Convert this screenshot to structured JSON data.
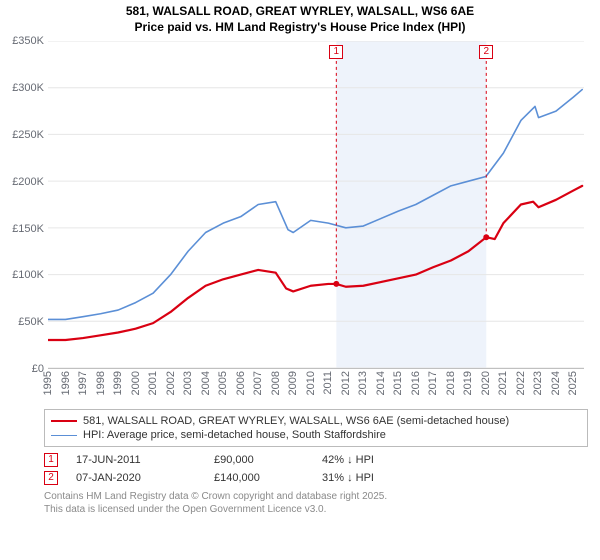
{
  "title": {
    "line1": "581, WALSALL ROAD, GREAT WYRLEY, WALSALL, WS6 6AE",
    "line2": "Price paid vs. HM Land Registry's House Price Index (HPI)",
    "fontsize": 12,
    "fontweight": "bold",
    "color": "#000000"
  },
  "chart": {
    "type": "line",
    "background_color": "#ffffff",
    "grid_color": "#e6e6e6",
    "shaded_band": {
      "x_from": 2011.46,
      "x_to": 2020.02,
      "fill": "#eef3fb"
    },
    "x": {
      "min": 1995,
      "max": 2025.6,
      "tick_step": 1,
      "labels": [
        "1995",
        "1996",
        "1997",
        "1998",
        "1999",
        "2000",
        "2001",
        "2002",
        "2003",
        "2004",
        "2005",
        "2006",
        "2007",
        "2008",
        "2009",
        "2010",
        "2011",
        "2012",
        "2013",
        "2014",
        "2015",
        "2016",
        "2017",
        "2018",
        "2019",
        "2020",
        "2021",
        "2022",
        "2023",
        "2024",
        "2025"
      ],
      "tick_rotation_deg": -90,
      "label_fontsize": 11,
      "label_color": "#666a73"
    },
    "y": {
      "min": 0,
      "max": 350000,
      "tick_step": 50000,
      "labels": [
        "£0",
        "£50K",
        "£100K",
        "£150K",
        "£200K",
        "£250K",
        "£300K",
        "£350K"
      ],
      "label_fontsize": 11,
      "label_color": "#666a73"
    },
    "series": [
      {
        "id": "property",
        "label": "581, WALSALL ROAD, GREAT WYRLEY, WALSALL, WS6 6AE (semi-detached house)",
        "color": "#d90012",
        "line_width": 2.2,
        "points": [
          [
            1995,
            30000
          ],
          [
            1996,
            30000
          ],
          [
            1997,
            32000
          ],
          [
            1998,
            35000
          ],
          [
            1999,
            38000
          ],
          [
            2000,
            42000
          ],
          [
            2001,
            48000
          ],
          [
            2002,
            60000
          ],
          [
            2003,
            75000
          ],
          [
            2004,
            88000
          ],
          [
            2005,
            95000
          ],
          [
            2006,
            100000
          ],
          [
            2007,
            105000
          ],
          [
            2008,
            102000
          ],
          [
            2008.6,
            85000
          ],
          [
            2009,
            82000
          ],
          [
            2010,
            88000
          ],
          [
            2011,
            90000
          ],
          [
            2011.46,
            90000
          ],
          [
            2012,
            87000
          ],
          [
            2013,
            88000
          ],
          [
            2014,
            92000
          ],
          [
            2015,
            96000
          ],
          [
            2016,
            100000
          ],
          [
            2017,
            108000
          ],
          [
            2018,
            115000
          ],
          [
            2019,
            125000
          ],
          [
            2020.02,
            140000
          ],
          [
            2020.5,
            138000
          ],
          [
            2021,
            155000
          ],
          [
            2022,
            175000
          ],
          [
            2022.7,
            178000
          ],
          [
            2023,
            172000
          ],
          [
            2024,
            180000
          ],
          [
            2025,
            190000
          ],
          [
            2025.5,
            195000
          ]
        ]
      },
      {
        "id": "hpi",
        "label": "HPI: Average price, semi-detached house, South Staffordshire",
        "color": "#5b8fd6",
        "line_width": 1.6,
        "points": [
          [
            1995,
            52000
          ],
          [
            1996,
            52000
          ],
          [
            1997,
            55000
          ],
          [
            1998,
            58000
          ],
          [
            1999,
            62000
          ],
          [
            2000,
            70000
          ],
          [
            2001,
            80000
          ],
          [
            2002,
            100000
          ],
          [
            2003,
            125000
          ],
          [
            2004,
            145000
          ],
          [
            2005,
            155000
          ],
          [
            2006,
            162000
          ],
          [
            2007,
            175000
          ],
          [
            2008,
            178000
          ],
          [
            2008.7,
            148000
          ],
          [
            2009,
            145000
          ],
          [
            2010,
            158000
          ],
          [
            2011,
            155000
          ],
          [
            2012,
            150000
          ],
          [
            2013,
            152000
          ],
          [
            2014,
            160000
          ],
          [
            2015,
            168000
          ],
          [
            2016,
            175000
          ],
          [
            2017,
            185000
          ],
          [
            2018,
            195000
          ],
          [
            2019,
            200000
          ],
          [
            2020,
            205000
          ],
          [
            2021,
            230000
          ],
          [
            2022,
            265000
          ],
          [
            2022.8,
            280000
          ],
          [
            2023,
            268000
          ],
          [
            2024,
            275000
          ],
          [
            2025,
            290000
          ],
          [
            2025.5,
            298000
          ]
        ]
      }
    ],
    "markers": [
      {
        "n": "1",
        "x": 2011.46,
        "y": 90000,
        "color": "#d90012",
        "dot_radius": 3
      },
      {
        "n": "2",
        "x": 2020.02,
        "y": 140000,
        "color": "#d90012",
        "dot_radius": 3
      }
    ]
  },
  "legend": {
    "border_color": "#bbbbbb",
    "items": [
      {
        "series": "property",
        "color": "#d90012",
        "width": 2.2
      },
      {
        "series": "hpi",
        "color": "#5b8fd6",
        "width": 1.6
      }
    ]
  },
  "transactions": [
    {
      "n": "1",
      "date": "17-JUN-2011",
      "price": "£90,000",
      "delta": "42% ↓ HPI",
      "color": "#d90012"
    },
    {
      "n": "2",
      "date": "07-JAN-2020",
      "price": "£140,000",
      "delta": "31% ↓ HPI",
      "color": "#d90012"
    }
  ],
  "footnote": {
    "line1": "Contains HM Land Registry data © Crown copyright and database right 2025.",
    "line2": "This data is licensed under the Open Government Licence v3.0.",
    "color": "#8a8a8a",
    "fontsize": 10
  }
}
